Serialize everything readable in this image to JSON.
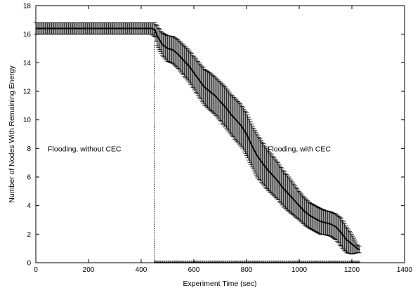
{
  "chart_data": {
    "type": "line",
    "title": "",
    "xlabel": "Experiment Time (sec)",
    "ylabel": "Number of Nodes With Remaining Energy",
    "xlim": [
      0,
      1400
    ],
    "ylim": [
      0,
      18
    ],
    "xticks": [
      0,
      200,
      400,
      600,
      800,
      1000,
      1200,
      1400
    ],
    "yticks": [
      0,
      2,
      4,
      6,
      8,
      10,
      12,
      14,
      16,
      18
    ],
    "grid": false,
    "legend": "none",
    "series": [
      {
        "x": [
          0,
          50,
          100,
          150,
          200,
          250,
          300,
          350,
          400,
          440,
          452,
          460,
          480,
          500,
          520,
          540,
          560,
          580,
          600,
          620,
          640,
          660,
          680,
          700,
          720,
          740,
          760,
          780,
          800,
          820,
          840,
          860,
          880,
          900,
          920,
          940,
          960,
          980,
          1000,
          1020,
          1040,
          1060,
          1080,
          1100,
          1120,
          1140,
          1160,
          1180,
          1200,
          1220,
          1230
        ],
        "y": [
          16.4,
          16.4,
          16.4,
          16.4,
          16.4,
          16.4,
          16.4,
          16.4,
          16.4,
          16.4,
          16.3,
          15.9,
          15.3,
          15.0,
          14.9,
          14.6,
          14.2,
          13.8,
          13.3,
          12.8,
          12.3,
          12.0,
          11.7,
          11.3,
          10.9,
          10.4,
          10.0,
          9.6,
          9.0,
          8.2,
          7.5,
          7.0,
          6.5,
          6.1,
          5.7,
          5.2,
          4.8,
          4.4,
          4.0,
          3.6,
          3.3,
          3.1,
          2.9,
          2.8,
          2.7,
          2.5,
          2.1,
          1.6,
          1.3,
          1.0,
          0.9
        ],
        "err": [
          0.4,
          0.4,
          0.4,
          0.4,
          0.4,
          0.4,
          0.4,
          0.4,
          0.4,
          0.4,
          0.5,
          0.7,
          0.8,
          0.9,
          0.95,
          1.0,
          1.05,
          1.1,
          1.15,
          1.2,
          1.25,
          1.3,
          1.3,
          1.35,
          1.4,
          1.4,
          1.45,
          1.45,
          1.5,
          1.5,
          1.5,
          1.45,
          1.4,
          1.35,
          1.3,
          1.25,
          1.2,
          1.1,
          1.0,
          0.95,
          0.9,
          0.9,
          0.9,
          0.85,
          0.85,
          0.9,
          1.0,
          0.9,
          0.7,
          0.3,
          0.2
        ],
        "color": "#000000"
      }
    ],
    "flat_line": {
      "y": 0,
      "x_from": 450,
      "x_to": 1230
    },
    "divider": {
      "x": 450,
      "y_top": 16.3
    },
    "annotations": [
      {
        "text": "Flooding, without CEC",
        "x": 185,
        "y": 8
      },
      {
        "text": "Flooding, with CEC",
        "x": 1000,
        "y": 8
      }
    ]
  }
}
